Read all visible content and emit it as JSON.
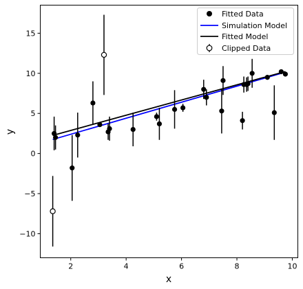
{
  "chart_data": {
    "type": "scatter",
    "xlabel": "x",
    "ylabel": "y",
    "xlim": [
      0.9,
      10.2
    ],
    "ylim": [
      -13,
      18.5
    ],
    "xticks": [
      2,
      4,
      6,
      8,
      10
    ],
    "yticks": [
      -10,
      -5,
      0,
      5,
      10,
      15
    ],
    "grid": false,
    "legend_position": "top-right",
    "legend": [
      "Fitted Data",
      "Simulation Model",
      "Fitted Model",
      "Clipped Data"
    ],
    "colors": {
      "data": "#000000",
      "simulation": "#0000ff",
      "fitted": "#000000"
    },
    "fitted_data": [
      {
        "x": 1.4,
        "y": 2.5,
        "err": 2.1
      },
      {
        "x": 1.45,
        "y": 2.0,
        "err": 1.5
      },
      {
        "x": 2.05,
        "y": -1.8,
        "err": 4.1
      },
      {
        "x": 2.25,
        "y": 2.3,
        "err": 2.8
      },
      {
        "x": 2.8,
        "y": 6.3,
        "err": 2.7
      },
      {
        "x": 3.05,
        "y": 3.6,
        "err": 0.3
      },
      {
        "x": 3.35,
        "y": 2.7,
        "err": 1.0
      },
      {
        "x": 3.4,
        "y": 3.1,
        "err": 1.5
      },
      {
        "x": 4.25,
        "y": 3.0,
        "err": 2.1
      },
      {
        "x": 5.1,
        "y": 4.6,
        "err": 0.5
      },
      {
        "x": 5.2,
        "y": 3.7,
        "err": 2.0
      },
      {
        "x": 5.75,
        "y": 5.5,
        "err": 2.4
      },
      {
        "x": 6.05,
        "y": 5.7,
        "err": 0.5
      },
      {
        "x": 6.8,
        "y": 8.0,
        "err": 1.2
      },
      {
        "x": 6.9,
        "y": 7.0,
        "err": 1.0
      },
      {
        "x": 7.45,
        "y": 5.3,
        "err": 2.8
      },
      {
        "x": 7.5,
        "y": 9.1,
        "err": 1.8
      },
      {
        "x": 8.2,
        "y": 4.1,
        "err": 1.1
      },
      {
        "x": 8.25,
        "y": 8.6,
        "err": 1.0
      },
      {
        "x": 8.35,
        "y": 8.6,
        "err": 0.9
      },
      {
        "x": 8.4,
        "y": 8.7,
        "err": 0.9
      },
      {
        "x": 8.55,
        "y": 10.0,
        "err": 1.8
      },
      {
        "x": 9.1,
        "y": 9.5,
        "err": 0.3
      },
      {
        "x": 9.35,
        "y": 5.1,
        "err": 3.4
      },
      {
        "x": 9.6,
        "y": 10.2,
        "err": 0.3
      },
      {
        "x": 9.75,
        "y": 9.9,
        "err": 0.3
      }
    ],
    "clipped_data": [
      {
        "x": 1.35,
        "y": -7.2,
        "err": 4.4
      },
      {
        "x": 3.2,
        "y": 12.3,
        "err": 5.0
      }
    ],
    "simulation_model": {
      "slope": 1.0,
      "intercept": 0.4
    },
    "fitted_model": {
      "slope": 0.948,
      "intercept": 0.98
    },
    "line_x_range": [
      1.35,
      9.75
    ]
  }
}
